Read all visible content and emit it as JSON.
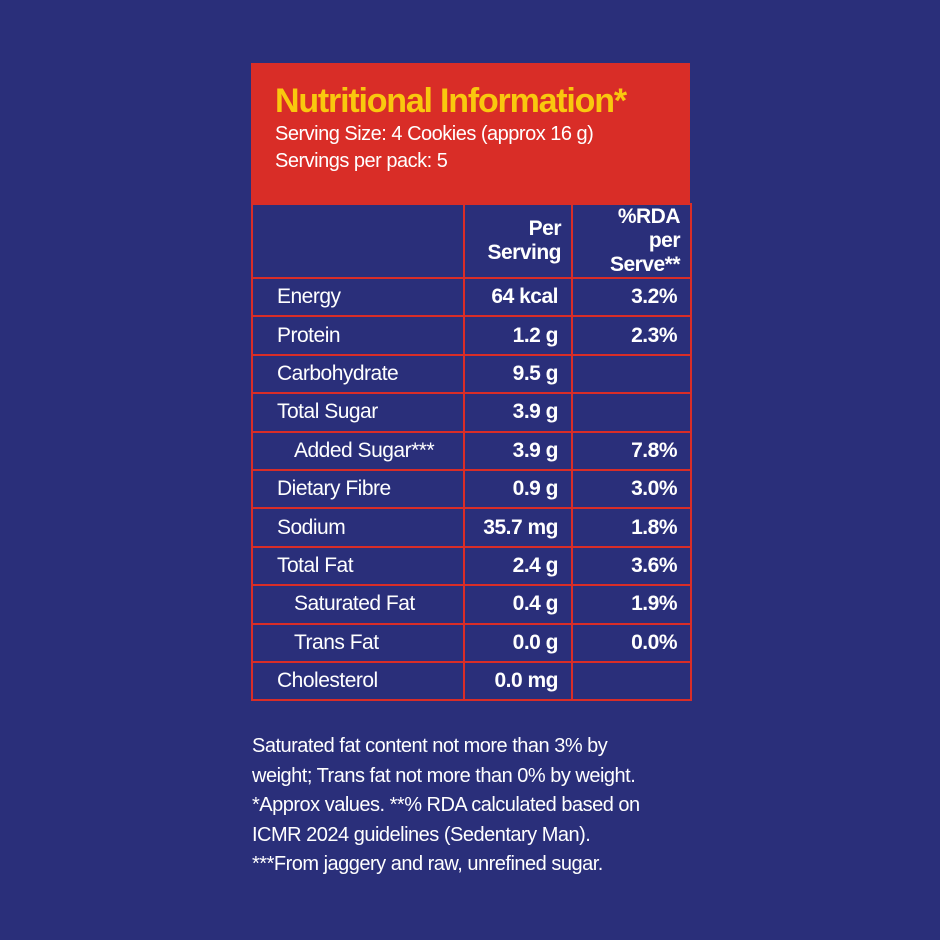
{
  "header": {
    "title": "Nutritional Information*",
    "serving_size": "Serving Size: 4 Cookies (approx 16 g)",
    "servings_per_pack": "Servings per pack: 5"
  },
  "columns": [
    "",
    "Per Serving",
    "%RDA per Serve**"
  ],
  "rows": [
    {
      "name": "Energy",
      "per_serving": "64 kcal",
      "rda": "3.2%",
      "indent": false
    },
    {
      "name": "Protein",
      "per_serving": "1.2 g",
      "rda": "2.3%",
      "indent": false
    },
    {
      "name": "Carbohydrate",
      "per_serving": "9.5 g",
      "rda": "",
      "indent": false
    },
    {
      "name": "Total Sugar",
      "per_serving": "3.9 g",
      "rda": "",
      "indent": false
    },
    {
      "name": "Added Sugar***",
      "per_serving": "3.9 g",
      "rda": "7.8%",
      "indent": true
    },
    {
      "name": "Dietary Fibre",
      "per_serving": "0.9 g",
      "rda": "3.0%",
      "indent": false
    },
    {
      "name": "Sodium",
      "per_serving": "35.7 mg",
      "rda": "1.8%",
      "indent": false
    },
    {
      "name": "Total Fat",
      "per_serving": "2.4 g",
      "rda": "3.6%",
      "indent": false
    },
    {
      "name": "Saturated Fat",
      "per_serving": "0.4 g",
      "rda": "1.9%",
      "indent": true
    },
    {
      "name": "Trans Fat",
      "per_serving": "0.0 g",
      "rda": "0.0%",
      "indent": true
    },
    {
      "name": "Cholesterol",
      "per_serving": "0.0 mg",
      "rda": "",
      "indent": false
    }
  ],
  "notes": [
    "Saturated fat content not more than 3% by",
    "weight; Trans fat not more than 0% by weight.",
    "*Approx values. **% RDA calculated based on",
    "ICMR 2024 guidelines (Sedentary Man).",
    "***From jaggery and raw, unrefined sugar."
  ],
  "colors": {
    "background": "#2a2f7a",
    "header": "#d92d27",
    "title": "#f9c80e",
    "text": "#ffffff"
  }
}
